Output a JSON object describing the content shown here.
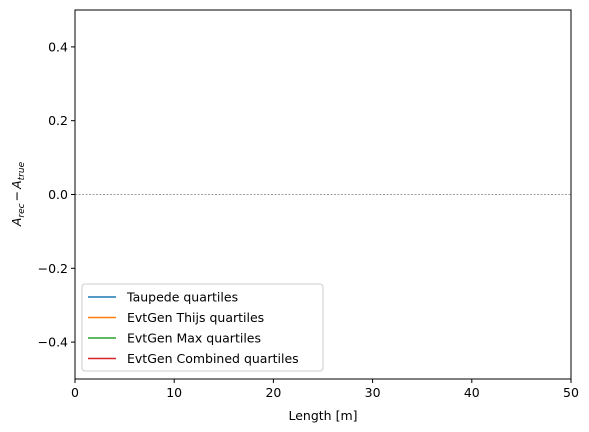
{
  "chart_data": {
    "type": "line",
    "xlabel": "Length [m]",
    "ylabel_main": "A",
    "ylabel_sub1": "rec",
    "ylabel_minus": "−",
    "ylabel_sub2": "true",
    "xlim": [
      0,
      50
    ],
    "ylim": [
      -0.5,
      0.5
    ],
    "xticks": [
      0,
      10,
      20,
      30,
      40,
      50
    ],
    "xtick_labels": [
      "0",
      "10",
      "20",
      "30",
      "40",
      "50"
    ],
    "yticks": [
      -0.4,
      -0.2,
      0.0,
      0.2,
      0.4
    ],
    "ytick_labels": [
      "−0.4",
      "−0.2",
      "0.0",
      "0.2",
      "0.4"
    ],
    "reference_line": {
      "y": 0.0,
      "style": "dashed",
      "color": "#808080"
    },
    "grid": false,
    "legend_position": "lower-left",
    "series": [
      {
        "name": "Taupede quartiles",
        "color": "#1f77b4",
        "x": [],
        "y": []
      },
      {
        "name": "EvtGen Thijs quartiles",
        "color": "#ff7f0e",
        "x": [],
        "y": []
      },
      {
        "name": "EvtGen Max quartiles",
        "color": "#2ca02c",
        "x": [],
        "y": []
      },
      {
        "name": "EvtGen Combined quartiles",
        "color": "#d62728",
        "x": [],
        "y": []
      }
    ]
  }
}
